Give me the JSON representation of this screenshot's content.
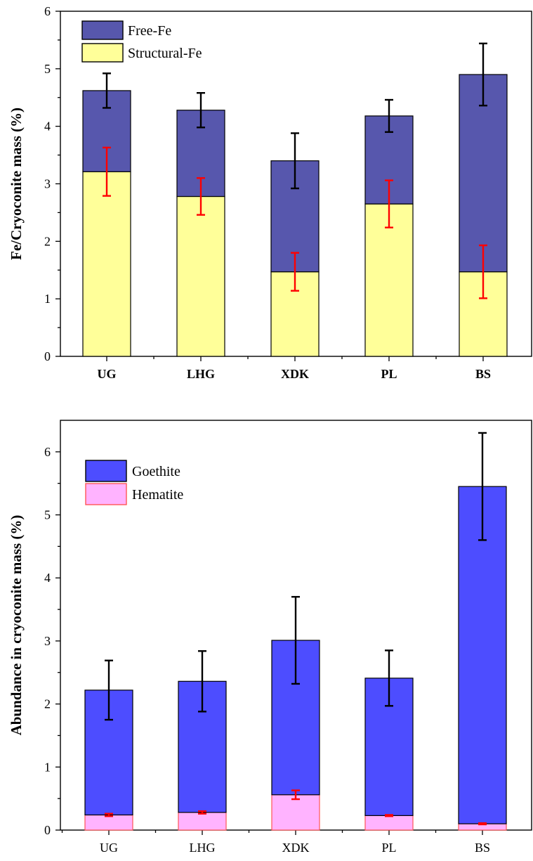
{
  "chart_data": [
    {
      "type": "bar",
      "stacked": true,
      "title": "",
      "xlabel": "",
      "ylabel": "Fe/Cryoconite mass (%)",
      "ylim": [
        0,
        6
      ],
      "yticks": [
        0,
        1,
        2,
        3,
        4,
        5,
        6
      ],
      "categories": [
        "UG",
        "LHG",
        "XDK",
        "PL",
        "BS"
      ],
      "tick_label_bold": true,
      "grid": false,
      "legend_position": "top-left",
      "series": [
        {
          "name": "Structural-Fe",
          "color": "#FFFF99",
          "edge_color": "#000000",
          "error_color": "#FF0000",
          "values": [
            3.21,
            2.78,
            1.47,
            2.65,
            1.47
          ],
          "errors": [
            0.42,
            0.32,
            0.33,
            0.41,
            0.46
          ]
        },
        {
          "name": "Free-Fe",
          "color": "#5757AD",
          "edge_color": "#000000",
          "error_color": "#000000",
          "values": [
            1.41,
            1.5,
            1.93,
            1.53,
            3.43
          ],
          "errors": [
            0.3,
            0.3,
            0.48,
            0.28,
            0.54
          ]
        }
      ],
      "legend_order": [
        "Free-Fe",
        "Structural-Fe"
      ]
    },
    {
      "type": "bar",
      "stacked": true,
      "title": "",
      "xlabel": "",
      "ylabel": "Abundance in cryoconite mass (%)",
      "ylim": [
        0,
        6.5
      ],
      "yticks": [
        0,
        1,
        2,
        3,
        4,
        5,
        6
      ],
      "categories": [
        "UG",
        "LHG",
        "XDK",
        "PL",
        "BS"
      ],
      "tick_label_bold": false,
      "grid": false,
      "legend_position": "top-left",
      "series": [
        {
          "name": "Hematite",
          "color": "#FFB3FF",
          "edge_color": "#FF5555",
          "error_color": "#FF0000",
          "values": [
            0.24,
            0.28,
            0.56,
            0.23,
            0.1
          ],
          "errors": [
            0.02,
            0.02,
            0.07,
            0.01,
            0.01
          ]
        },
        {
          "name": "Goethite",
          "color": "#4D4DFF",
          "edge_color": "#000000",
          "error_color": "#000000",
          "values": [
            1.98,
            2.08,
            2.45,
            2.18,
            5.35
          ],
          "errors": [
            0.47,
            0.48,
            0.69,
            0.44,
            0.85
          ]
        }
      ],
      "legend_order": [
        "Goethite",
        "Hematite"
      ]
    }
  ]
}
